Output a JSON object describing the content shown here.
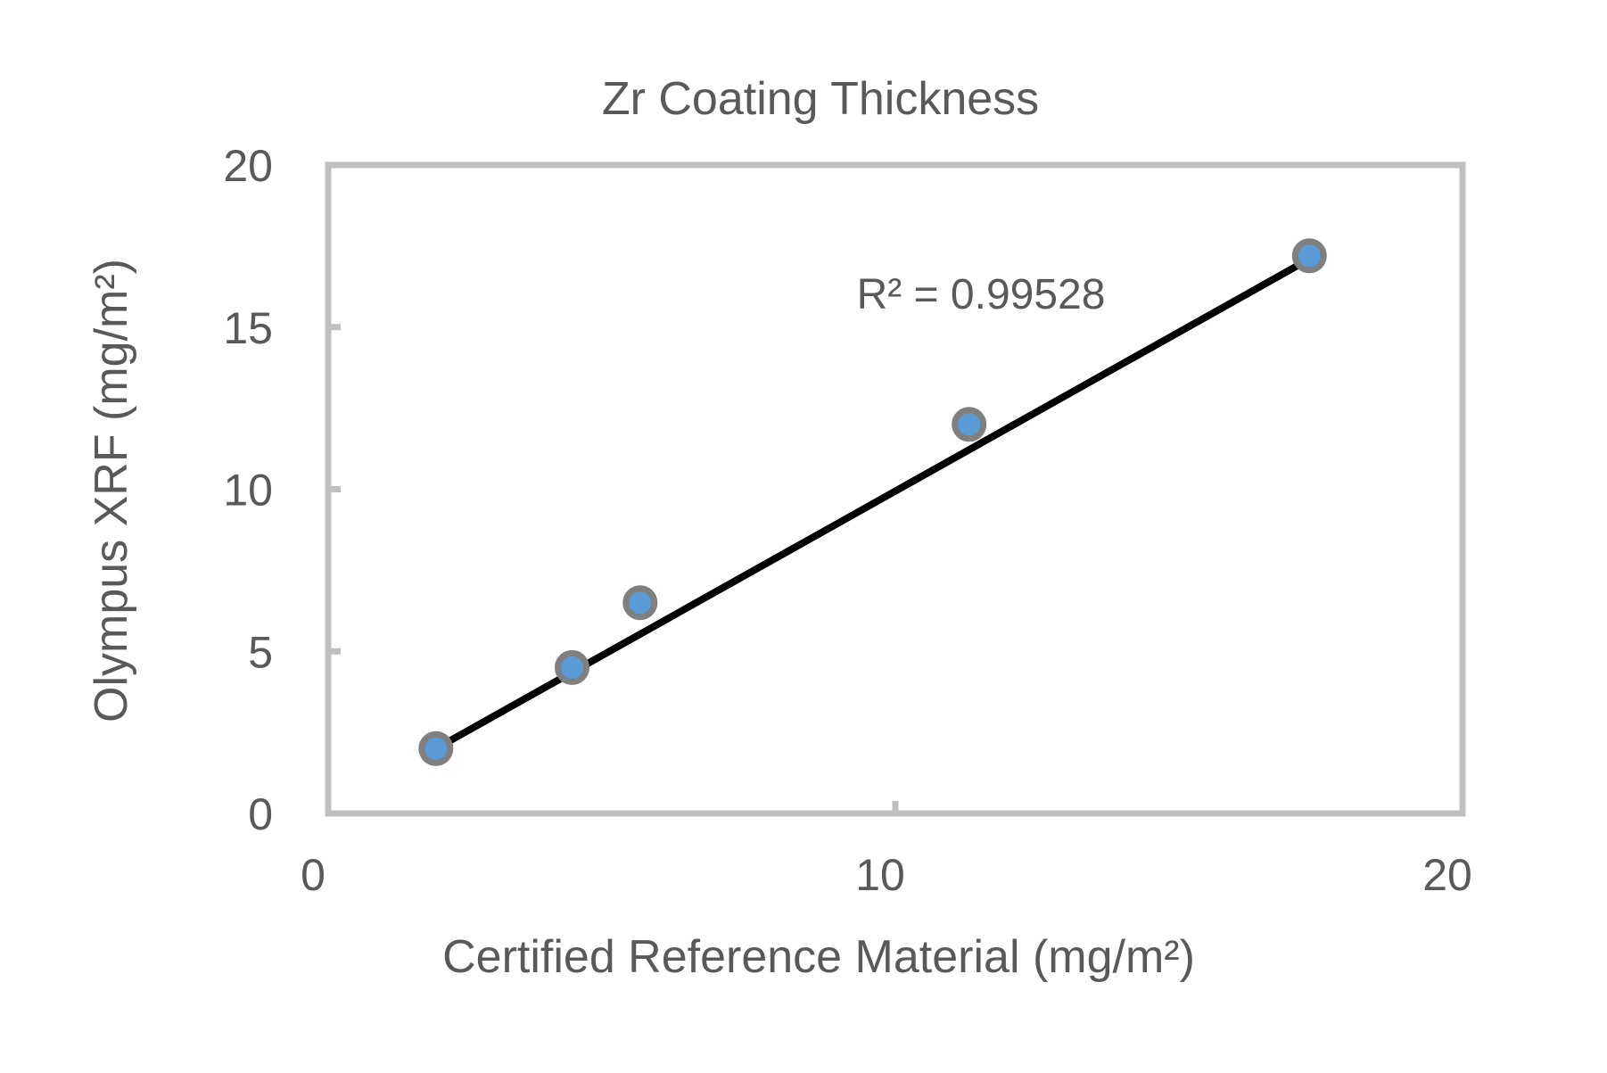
{
  "chart_data": {
    "type": "scatter",
    "title": "Zr Coating Thickness",
    "xlabel": "Certified Reference Material (mg/m²)",
    "ylabel": "Olympus XRF (mg/m²)",
    "xlim": [
      0,
      20
    ],
    "ylim": [
      0,
      20
    ],
    "x_ticks": [
      0,
      10,
      20
    ],
    "y_ticks": [
      0,
      5,
      10,
      15,
      20
    ],
    "x_tick_labels": [
      "0",
      "10",
      "20"
    ],
    "y_tick_labels": [
      "0",
      "5",
      "10",
      "15",
      "20"
    ],
    "grid": false,
    "legend": "none",
    "series": [
      {
        "x": [
          1.9,
          4.3,
          5.5,
          11.3,
          17.3
        ],
        "y": [
          2.0,
          4.5,
          6.5,
          12.0,
          17.2
        ]
      }
    ],
    "trendline": {
      "type": "linear",
      "x_range": [
        1.9,
        17.3
      ],
      "y_range": [
        2.0,
        17.1
      ],
      "label": "R² = 0.99528"
    },
    "colors": {
      "marker_fill": "#5b9bd5",
      "marker_stroke": "#7f7f7f",
      "trendline": "#000000",
      "axis": "#bfbfbf",
      "text": "#595959"
    }
  }
}
